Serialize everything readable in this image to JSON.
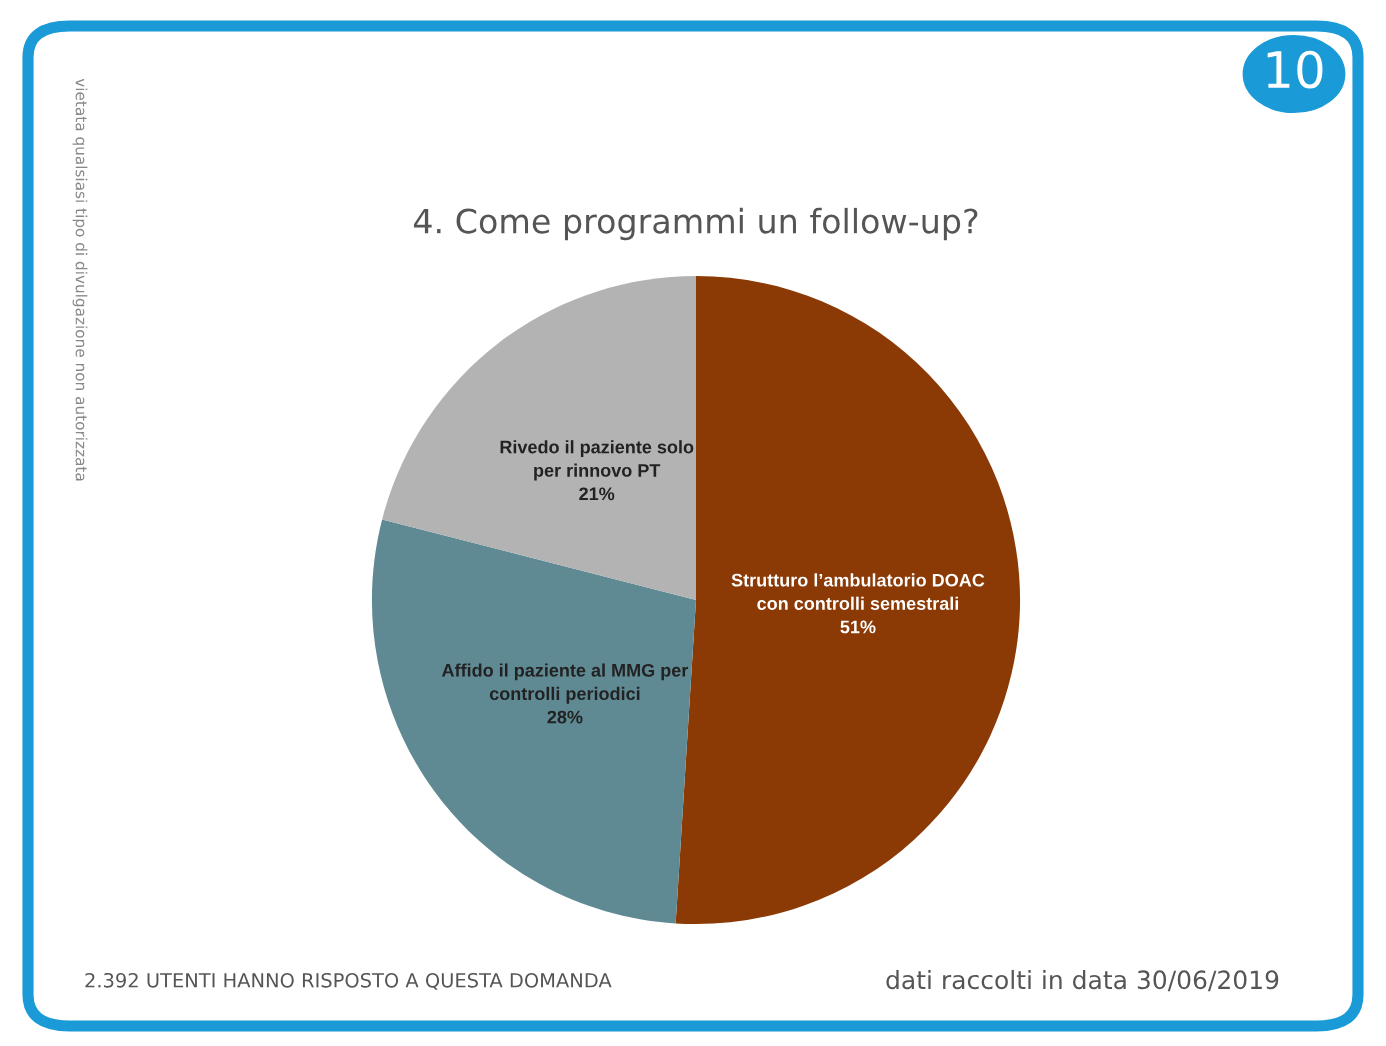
{
  "chart_data": {
    "type": "pie",
    "title": "4. Come programmi un follow-up?",
    "categories": [
      "Strutturo l’ambulatorio DOAC\ncon controlli semestrali",
      "Affido il paziente al MMG per\ncontrolli periodici",
      "Rivedo il paziente solo\nper rinnovo PT"
    ],
    "values": [
      51,
      28,
      21
    ],
    "colors": [
      "#8b3a06",
      "#5f8a93",
      "#b3b3b3"
    ],
    "value_labels": [
      "51%",
      "28%",
      "21%"
    ],
    "legend": false,
    "annotations": [
      "10",
      "vietata qualsiasi tipo di divulgazione non autorizzata",
      "2.392 UTENTI HANNO RISPOSTO A QUESTA DOMANDA",
      "dati raccolti in data 30/06/2019"
    ]
  }
}
